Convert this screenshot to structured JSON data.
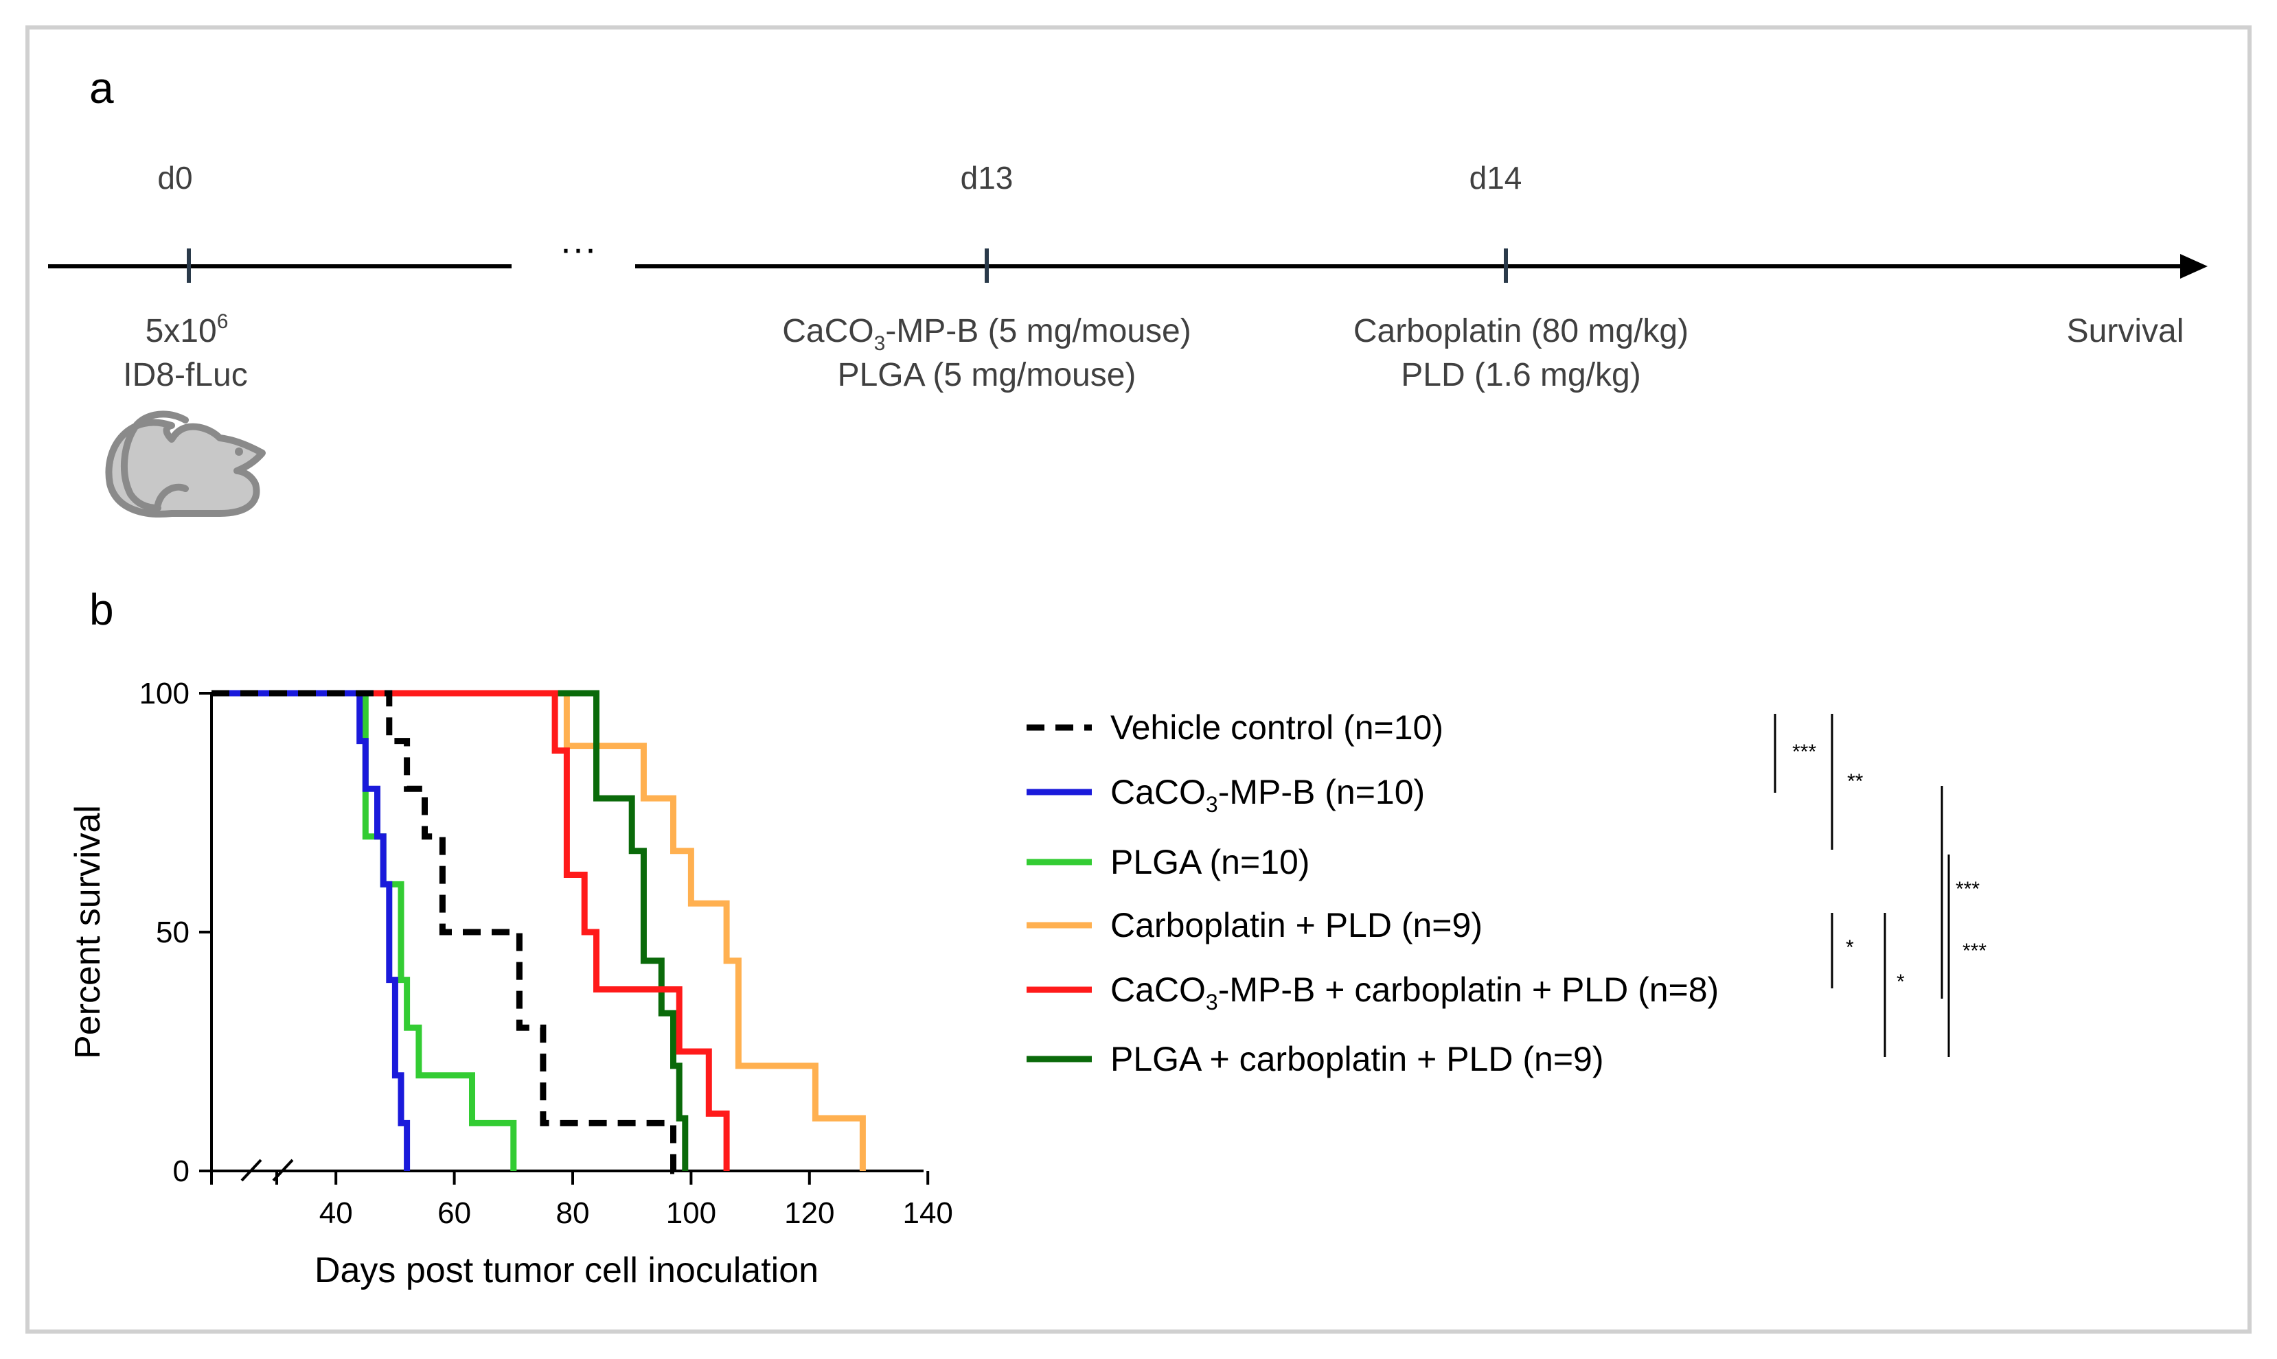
{
  "panel_a": {
    "letter": "a",
    "ellipsis": "···",
    "events": [
      {
        "day": "d0",
        "desc_lines": [
          "5x10",
          "ID8-fLuc"
        ],
        "desc_sup": "6"
      },
      {
        "day": "d13",
        "desc_lines": [
          "CaCO",
          "-MP-B (5 mg/mouse)",
          "PLGA (5 mg/mouse)"
        ],
        "desc_sub": "3"
      },
      {
        "day": "d14",
        "desc_lines": [
          "Carboplatin  (80 mg/kg)",
          "PLD (1.6 mg/kg)"
        ]
      }
    ],
    "endpoint": "Survival",
    "mouse_icon": "mouse-icon"
  },
  "panel_b": {
    "letter": "b"
  },
  "colors": {
    "vehicle": "#000000",
    "caco3": "#1a1adb",
    "plga": "#33cc33",
    "carbo_pld": "#ffb050",
    "caco3_carbo_pld": "#ff1a1a",
    "plga_carbo_pld": "#0a6a0a"
  },
  "legend": [
    {
      "key": "vehicle",
      "label": "Vehicle control (n=10)",
      "dashed": true
    },
    {
      "key": "caco3",
      "label_pre": "CaCO",
      "label_sub": "3",
      "label_post": "-MP-B (n=10)"
    },
    {
      "key": "plga",
      "label": "PLGA (n=10)"
    },
    {
      "key": "carbo_pld",
      "label": "Carboplatin + PLD (n=9)"
    },
    {
      "key": "caco3_carbo_pld",
      "label_pre": "CaCO",
      "label_sub": "3",
      "label_post": "-MP-B + carboplatin + PLD (n=8)"
    },
    {
      "key": "plga_carbo_pld",
      "label": "PLGA + carboplatin + PLD (n=9)"
    }
  ],
  "significance": [
    {
      "label": "***"
    },
    {
      "label": "**"
    },
    {
      "label": "***"
    },
    {
      "label": "*"
    },
    {
      "label": "*"
    },
    {
      "label": "***"
    }
  ],
  "chart_data": {
    "type": "line",
    "subtype": "kaplan-meier step",
    "title": "",
    "xlabel": "Days post tumor cell inoculation",
    "ylabel": "Percent survival",
    "xlim": [
      20,
      140
    ],
    "ylim": [
      0,
      100
    ],
    "x_ticks": [
      40,
      60,
      80,
      100,
      120,
      140
    ],
    "y_ticks": [
      0,
      50,
      100
    ],
    "axis_break": "x axis broken between 0 and 30",
    "series": [
      {
        "name": "Vehicle control (n=10)",
        "key": "vehicle",
        "dashed": true,
        "points": [
          [
            20,
            100
          ],
          [
            49,
            100
          ],
          [
            49,
            90
          ],
          [
            52,
            90
          ],
          [
            52,
            80
          ],
          [
            55,
            80
          ],
          [
            55,
            70
          ],
          [
            58,
            70
          ],
          [
            58,
            50
          ],
          [
            71,
            50
          ],
          [
            71,
            30
          ],
          [
            75,
            30
          ],
          [
            75,
            10
          ],
          [
            97,
            10
          ],
          [
            97,
            0
          ],
          [
            98,
            0
          ]
        ]
      },
      {
        "name": "CaCO3-MP-B (n=10)",
        "key": "caco3",
        "points": [
          [
            20,
            100
          ],
          [
            44,
            100
          ],
          [
            44,
            90
          ],
          [
            45,
            90
          ],
          [
            45,
            80
          ],
          [
            47,
            80
          ],
          [
            47,
            70
          ],
          [
            48,
            70
          ],
          [
            48,
            60
          ],
          [
            49,
            60
          ],
          [
            49,
            40
          ],
          [
            50,
            40
          ],
          [
            50,
            20
          ],
          [
            51,
            20
          ],
          [
            51,
            10
          ],
          [
            52,
            10
          ],
          [
            52,
            0
          ]
        ]
      },
      {
        "name": "PLGA (n=10)",
        "key": "plga",
        "points": [
          [
            20,
            100
          ],
          [
            45,
            100
          ],
          [
            45,
            70
          ],
          [
            48,
            70
          ],
          [
            48,
            60
          ],
          [
            51,
            60
          ],
          [
            51,
            40
          ],
          [
            52,
            40
          ],
          [
            52,
            30
          ],
          [
            54,
            30
          ],
          [
            54,
            20
          ],
          [
            63,
            20
          ],
          [
            63,
            10
          ],
          [
            70,
            10
          ],
          [
            70,
            0
          ]
        ]
      },
      {
        "name": "Carboplatin + PLD (n=9)",
        "key": "carbo_pld",
        "points": [
          [
            20,
            100
          ],
          [
            79,
            100
          ],
          [
            79,
            89
          ],
          [
            92,
            89
          ],
          [
            92,
            78
          ],
          [
            97,
            78
          ],
          [
            97,
            67
          ],
          [
            100,
            67
          ],
          [
            100,
            56
          ],
          [
            106,
            56
          ],
          [
            106,
            44
          ],
          [
            108,
            44
          ],
          [
            108,
            22
          ],
          [
            121,
            22
          ],
          [
            121,
            11
          ],
          [
            129,
            11
          ],
          [
            129,
            0
          ]
        ]
      },
      {
        "name": "CaCO3-MP-B + carboplatin + PLD (n=8)",
        "key": "caco3_carbo_pld",
        "points": [
          [
            20,
            100
          ],
          [
            77,
            100
          ],
          [
            77,
            88
          ],
          [
            79,
            88
          ],
          [
            79,
            62
          ],
          [
            82,
            62
          ],
          [
            82,
            50
          ],
          [
            84,
            50
          ],
          [
            84,
            38
          ],
          [
            98,
            38
          ],
          [
            98,
            25
          ],
          [
            103,
            25
          ],
          [
            103,
            12
          ],
          [
            106,
            12
          ],
          [
            106,
            0
          ]
        ]
      },
      {
        "name": "PLGA + carboplatin + PLD (n=9)",
        "key": "plga_carbo_pld",
        "points": [
          [
            20,
            100
          ],
          [
            84,
            100
          ],
          [
            84,
            89
          ],
          [
            84,
            89
          ],
          [
            84,
            78
          ],
          [
            90,
            78
          ],
          [
            90,
            67
          ],
          [
            92,
            67
          ],
          [
            92,
            44
          ],
          [
            95,
            44
          ],
          [
            95,
            33
          ],
          [
            97,
            33
          ],
          [
            97,
            22
          ],
          [
            98,
            22
          ],
          [
            98,
            11
          ],
          [
            99,
            11
          ],
          [
            99,
            0
          ]
        ]
      }
    ]
  }
}
